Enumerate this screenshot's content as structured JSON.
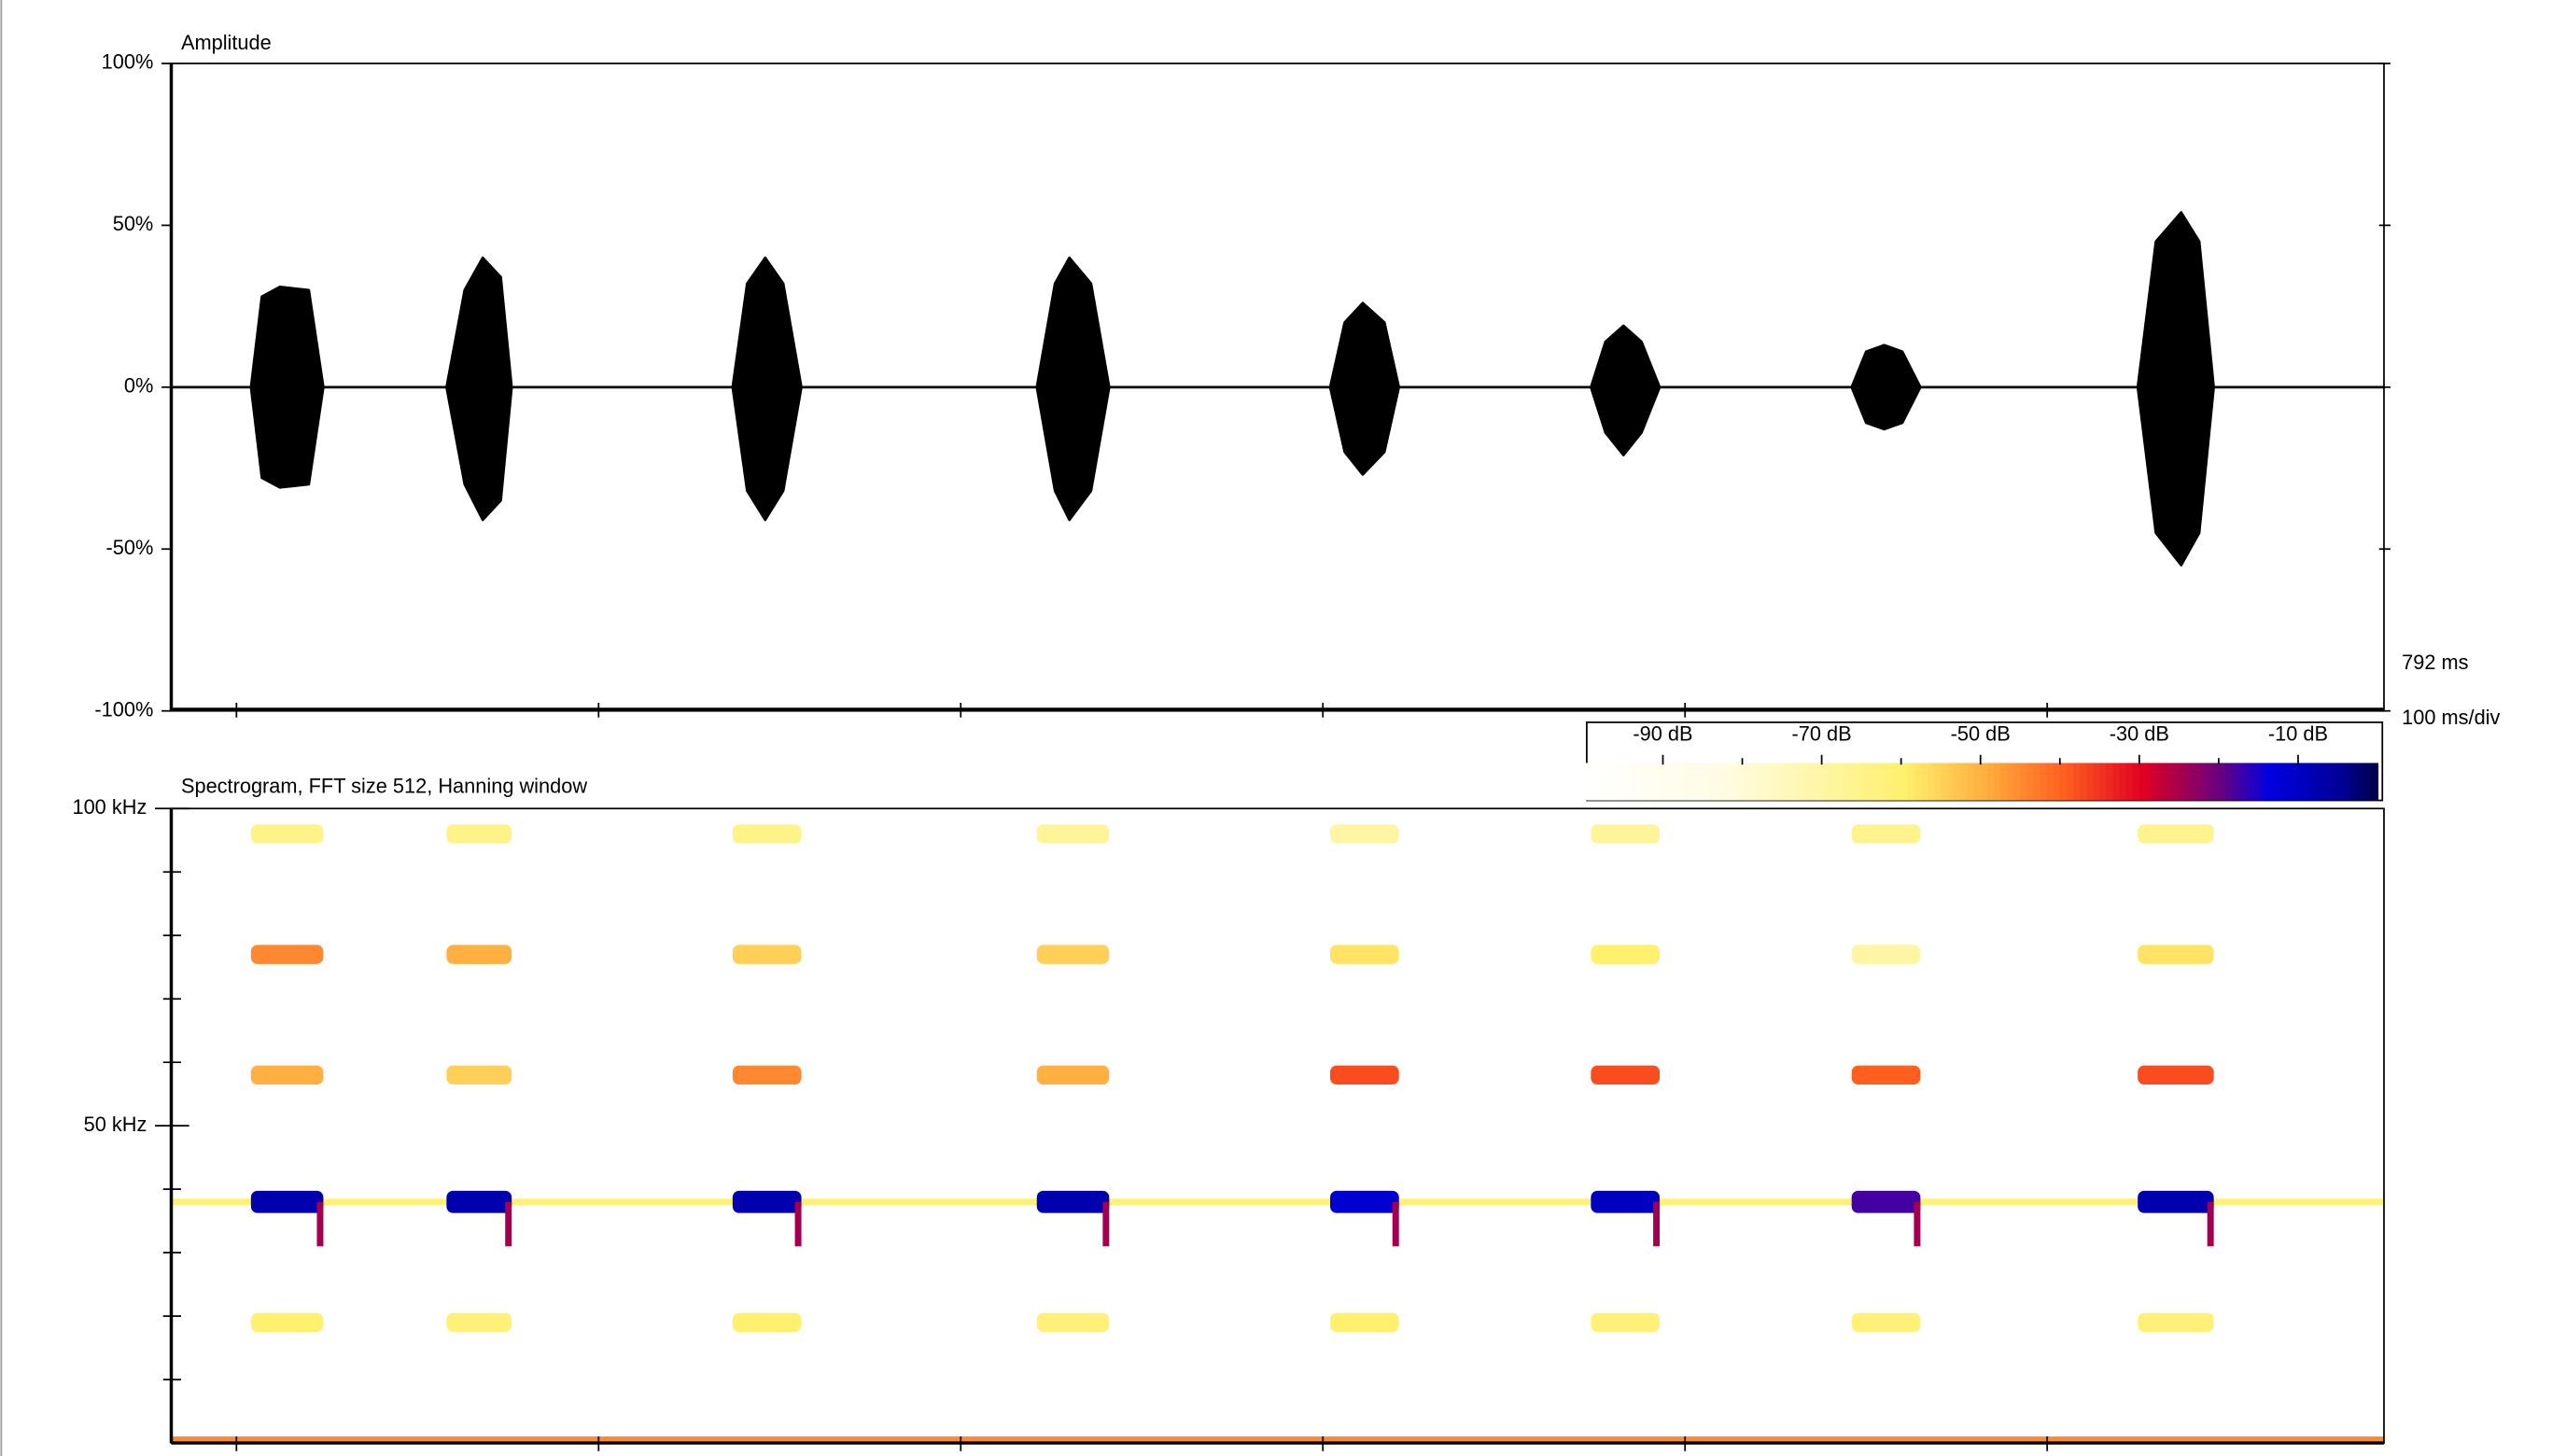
{
  "chart_data": [
    {
      "type": "area",
      "title": "Amplitude",
      "annotations": [
        "792 ms",
        "100 ms/div"
      ],
      "x": [
        0,
        22,
        25,
        30,
        38,
        42,
        76,
        81,
        86,
        91,
        94,
        155,
        159,
        164,
        169,
        174,
        239,
        244,
        248,
        254,
        259,
        320,
        324,
        329,
        335,
        339,
        392,
        396,
        401,
        406,
        411,
        464,
        468,
        473,
        478,
        483,
        543,
        548,
        555,
        560,
        564,
        611
      ],
      "series": [
        {
          "color": "#000000",
          "values": [
            0,
            0,
            28,
            31,
            30,
            0,
            0,
            30,
            40,
            34,
            0,
            0,
            32,
            40,
            32,
            0,
            0,
            32,
            40,
            32,
            0,
            0,
            20,
            26,
            20,
            0,
            0,
            14,
            19,
            14,
            0,
            0,
            11,
            13,
            11,
            0,
            0,
            45,
            54,
            45,
            0,
            0
          ]
        },
        {
          "color": "#000000",
          "values": [
            0,
            0,
            -28,
            -31,
            -30,
            0,
            0,
            -30,
            -41,
            -35,
            0,
            0,
            -32,
            -41,
            -32,
            0,
            0,
            -32,
            -41,
            -32,
            0,
            0,
            -20,
            -27,
            -20,
            0,
            0,
            -14,
            -21,
            -14,
            0,
            0,
            -11,
            -13,
            -11,
            0,
            0,
            -45,
            -55,
            -45,
            0,
            0
          ]
        }
      ],
      "xlim": [
        0,
        611
      ],
      "xticks": [
        18,
        118,
        218,
        318,
        418,
        518
      ],
      "ylim": [
        -100,
        100
      ],
      "yticks": [
        {
          "value": -100,
          "label": "-100%"
        },
        {
          "value": -50,
          "label": "-50%"
        },
        {
          "value": 0,
          "label": "0%"
        },
        {
          "value": 50,
          "label": "50%"
        },
        {
          "value": 100,
          "label": "100%"
        }
      ]
    },
    {
      "type": "heatmap",
      "title": "Spectrogram, FFT size 512, Hanning window",
      "xlim": [
        0,
        611
      ],
      "xticks": [
        18,
        118,
        218,
        318,
        418,
        518
      ],
      "ylim": [
        0,
        100
      ],
      "yticks": [
        {
          "value": 50,
          "label": "50 kHz"
        },
        {
          "value": 100,
          "label": "100 kHz"
        }
      ],
      "yminor": [
        10,
        20,
        30,
        40,
        60,
        70,
        80,
        90
      ],
      "clim": [
        -100,
        0
      ],
      "cticks": [
        {
          "value": -90,
          "label": "-90 dB"
        },
        {
          "value": -70,
          "label": "-70 dB"
        },
        {
          "value": -50,
          "label": "-50 dB"
        },
        {
          "value": -30,
          "label": "-30 dB"
        },
        {
          "value": -10,
          "label": "-10 dB"
        }
      ],
      "cminor": [
        -80,
        -60,
        -40,
        -20
      ],
      "band_freqs": [
        19,
        38,
        58,
        77,
        96
      ],
      "calls": [
        {
          "t": [
            22,
            42
          ],
          "bands": [
            -60,
            -8,
            -50,
            -45,
            -65
          ],
          "tail": -25
        },
        {
          "t": [
            76,
            94
          ],
          "bands": [
            -62,
            -8,
            -55,
            -50,
            -65
          ],
          "tail": -25
        },
        {
          "t": [
            155,
            174
          ],
          "bands": [
            -60,
            -8,
            -45,
            -55,
            -65
          ],
          "tail": -25
        },
        {
          "t": [
            239,
            259
          ],
          "bands": [
            -62,
            -8,
            -50,
            -55,
            -68
          ],
          "tail": -25
        },
        {
          "t": [
            320,
            339
          ],
          "bands": [
            -60,
            -12,
            -38,
            -58,
            -70
          ],
          "tail": -25
        },
        {
          "t": [
            392,
            411
          ],
          "bands": [
            -62,
            -10,
            -38,
            -60,
            -68
          ],
          "tail": -25
        },
        {
          "t": [
            464,
            483
          ],
          "bands": [
            -62,
            -18,
            -40,
            -70,
            -66
          ],
          "tail": -25
        },
        {
          "t": [
            543,
            564
          ],
          "bands": [
            -62,
            -8,
            -38,
            -58,
            -66
          ],
          "tail": -25
        }
      ],
      "hum": {
        "f": 38,
        "db": -62
      },
      "floor": {
        "f": 0,
        "db": -45
      }
    }
  ]
}
